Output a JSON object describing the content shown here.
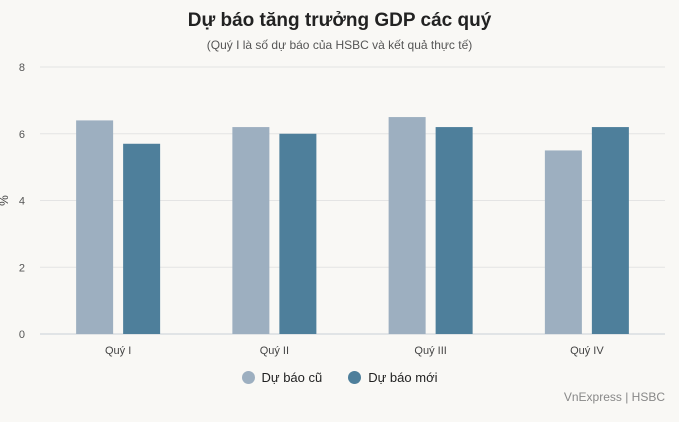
{
  "chart_data": {
    "type": "bar",
    "title": "Dự báo tăng trưởng GDP các quý",
    "subtitle": "(Quý I là số dự báo của HSBC và kết quả thực tế)",
    "ylabel": "%",
    "xlabel": "",
    "ylim": [
      0,
      8
    ],
    "yticks": [
      0,
      2,
      4,
      6,
      8
    ],
    "categories": [
      "Quý I",
      "Quý II",
      "Quý III",
      "Quý IV"
    ],
    "series": [
      {
        "name": "Dự báo cũ",
        "values": [
          6.4,
          6.2,
          6.5,
          5.5
        ],
        "color": "#9dafc0"
      },
      {
        "name": "Dự báo mới",
        "values": [
          5.7,
          6.0,
          6.2,
          6.2
        ],
        "color": "#4e7f9b"
      }
    ],
    "grid": true,
    "legend": "bottom"
  },
  "source": "VnExpress | HSBC"
}
